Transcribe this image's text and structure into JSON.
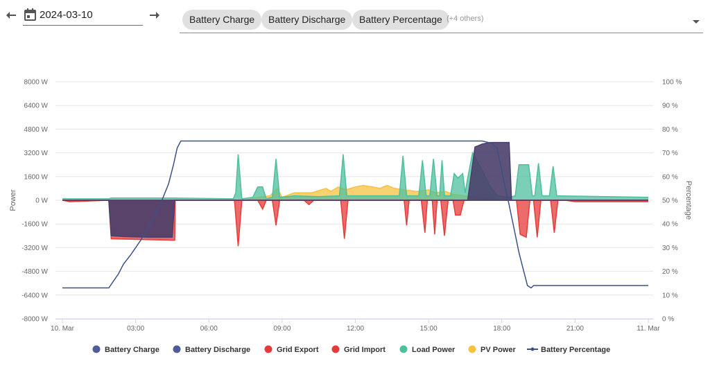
{
  "toolbar": {
    "date": "2024-03-10",
    "chips": [
      "Battery Charge",
      "Battery Discharge",
      "Battery Percentage"
    ],
    "others": "(+4 others)"
  },
  "chart_data": {
    "type": "area",
    "x_unit": "hours",
    "x_ticks": [
      "10. Mar",
      "03:00",
      "06:00",
      "09:00",
      "12:00",
      "15:00",
      "18:00",
      "21:00",
      "11. Mar"
    ],
    "xlim": [
      0,
      24
    ],
    "y_left": {
      "title": "Power",
      "ylim": [
        -8000,
        8000
      ],
      "ticks": [
        "8000 W",
        "6400 W",
        "4800 W",
        "3200 W",
        "1600 W",
        "0 W",
        "-1600 W",
        "-3200 W",
        "-4800 W",
        "-6400 W",
        "-8000 W"
      ]
    },
    "y_right": {
      "title": "Percentage",
      "ylim": [
        0,
        100
      ],
      "ticks": [
        "100 %",
        "90 %",
        "80 %",
        "70 %",
        "60 %",
        "50 %",
        "40 %",
        "30 %",
        "20 %",
        "10 %",
        "0 %"
      ]
    },
    "grid": true,
    "legend_position": "bottom",
    "series": [
      {
        "name": "Battery Charge",
        "color": "#4a3f6b",
        "axis": "left",
        "kind": "area",
        "points": [
          [
            0,
            0
          ],
          [
            16.6,
            0
          ],
          [
            16.75,
            1800
          ],
          [
            16.9,
            3600
          ],
          [
            17.2,
            3800
          ],
          [
            17.5,
            3900
          ],
          [
            18.3,
            3900
          ],
          [
            18.4,
            0
          ],
          [
            24,
            0
          ]
        ]
      },
      {
        "name": "Battery Discharge",
        "color": "#4a3f6b",
        "axis": "left",
        "kind": "area",
        "points": [
          [
            0,
            0
          ],
          [
            1.9,
            0
          ],
          [
            2.0,
            -2400
          ],
          [
            2.5,
            -2450
          ],
          [
            3.5,
            -2500
          ],
          [
            4.5,
            -2500
          ],
          [
            4.6,
            0
          ],
          [
            24,
            0
          ]
        ]
      },
      {
        "name": "Grid Export",
        "color": "#e63b3b",
        "axis": "left",
        "kind": "area",
        "points": [
          [
            0,
            0
          ],
          [
            0.3,
            -100
          ],
          [
            1.9,
            0
          ],
          [
            2.0,
            -2600
          ],
          [
            4.6,
            -2700
          ],
          [
            4.62,
            0
          ],
          [
            7.05,
            0
          ],
          [
            7.2,
            -3100
          ],
          [
            7.35,
            0
          ],
          [
            8.0,
            0
          ],
          [
            8.2,
            -600
          ],
          [
            8.35,
            0
          ],
          [
            8.6,
            0
          ],
          [
            8.75,
            -1700
          ],
          [
            8.9,
            0
          ],
          [
            9.9,
            0
          ],
          [
            10.1,
            -300
          ],
          [
            10.3,
            0
          ],
          [
            11.4,
            0
          ],
          [
            11.55,
            -2600
          ],
          [
            11.7,
            0
          ],
          [
            14.0,
            0
          ],
          [
            14.1,
            -1700
          ],
          [
            14.2,
            0
          ],
          [
            14.7,
            0
          ],
          [
            14.85,
            -2200
          ],
          [
            14.95,
            0
          ],
          [
            15.15,
            0
          ],
          [
            15.25,
            -2300
          ],
          [
            15.35,
            0
          ],
          [
            15.5,
            0
          ],
          [
            15.65,
            -2400
          ],
          [
            15.8,
            0
          ],
          [
            16.0,
            0
          ],
          [
            16.1,
            -1000
          ],
          [
            16.3,
            -1000
          ],
          [
            16.45,
            0
          ],
          [
            18.6,
            0
          ],
          [
            18.75,
            -2300
          ],
          [
            19.0,
            -2500
          ],
          [
            19.15,
            0
          ],
          [
            19.3,
            0
          ],
          [
            19.45,
            -2500
          ],
          [
            19.6,
            0
          ],
          [
            20.0,
            0
          ],
          [
            20.15,
            -2200
          ],
          [
            20.3,
            0
          ],
          [
            20.6,
            0
          ],
          [
            21.0,
            -100
          ],
          [
            24,
            -100
          ]
        ]
      },
      {
        "name": "Grid Import",
        "color": "#e63b3b",
        "axis": "left",
        "kind": "area",
        "points": [
          [
            0,
            0
          ],
          [
            24,
            0
          ]
        ]
      },
      {
        "name": "Load Power",
        "color": "#4dbf9e",
        "axis": "left",
        "kind": "area",
        "points": [
          [
            0,
            100
          ],
          [
            1.9,
            100
          ],
          [
            2.0,
            150
          ],
          [
            4.6,
            150
          ],
          [
            7.0,
            100
          ],
          [
            7.1,
            500
          ],
          [
            7.2,
            3100
          ],
          [
            7.35,
            100
          ],
          [
            7.8,
            200
          ],
          [
            8.0,
            900
          ],
          [
            8.2,
            900
          ],
          [
            8.35,
            100
          ],
          [
            8.6,
            200
          ],
          [
            8.75,
            2800
          ],
          [
            8.9,
            200
          ],
          [
            9.5,
            300
          ],
          [
            10.5,
            250
          ],
          [
            11.35,
            300
          ],
          [
            11.5,
            3100
          ],
          [
            11.65,
            300
          ],
          [
            13.8,
            300
          ],
          [
            13.95,
            3000
          ],
          [
            14.1,
            300
          ],
          [
            14.6,
            300
          ],
          [
            14.75,
            2700
          ],
          [
            14.9,
            300
          ],
          [
            15.05,
            300
          ],
          [
            15.2,
            2800
          ],
          [
            15.35,
            300
          ],
          [
            15.45,
            300
          ],
          [
            15.55,
            2700
          ],
          [
            15.65,
            300
          ],
          [
            15.9,
            300
          ],
          [
            16.05,
            1800
          ],
          [
            16.2,
            1500
          ],
          [
            16.4,
            1800
          ],
          [
            16.5,
            500
          ],
          [
            16.6,
            1500
          ],
          [
            16.8,
            3200
          ],
          [
            17.2,
            2000
          ],
          [
            17.5,
            1000
          ],
          [
            17.8,
            300
          ],
          [
            18.3,
            200
          ],
          [
            18.55,
            300
          ],
          [
            18.7,
            2400
          ],
          [
            19.1,
            2400
          ],
          [
            19.25,
            300
          ],
          [
            19.35,
            300
          ],
          [
            19.5,
            2500
          ],
          [
            19.65,
            300
          ],
          [
            19.95,
            300
          ],
          [
            20.1,
            2300
          ],
          [
            20.25,
            300
          ],
          [
            24,
            200
          ]
        ]
      },
      {
        "name": "PV Power",
        "color": "#f5c242",
        "axis": "left",
        "kind": "area",
        "points": [
          [
            0,
            0
          ],
          [
            7.5,
            0
          ],
          [
            8.0,
            200
          ],
          [
            8.5,
            300
          ],
          [
            8.8,
            800
          ],
          [
            9.0,
            200
          ],
          [
            9.5,
            500
          ],
          [
            10.2,
            500
          ],
          [
            10.8,
            800
          ],
          [
            11.0,
            600
          ],
          [
            11.3,
            900
          ],
          [
            11.6,
            700
          ],
          [
            12.0,
            900
          ],
          [
            12.3,
            1000
          ],
          [
            12.7,
            900
          ],
          [
            13.0,
            800
          ],
          [
            13.3,
            1000
          ],
          [
            13.6,
            800
          ],
          [
            14.0,
            700
          ],
          [
            14.5,
            600
          ],
          [
            15.0,
            700
          ],
          [
            15.3,
            500
          ],
          [
            15.7,
            600
          ],
          [
            16.0,
            400
          ],
          [
            16.5,
            300
          ],
          [
            17.0,
            200
          ],
          [
            17.5,
            100
          ],
          [
            18.0,
            0
          ],
          [
            24,
            0
          ]
        ]
      },
      {
        "name": "Battery Percentage",
        "color": "#3b5185",
        "axis": "right",
        "kind": "line",
        "points": [
          [
            0,
            13
          ],
          [
            1.9,
            13
          ],
          [
            2.1,
            16
          ],
          [
            2.3,
            19
          ],
          [
            2.5,
            23
          ],
          [
            2.8,
            27
          ],
          [
            3.2,
            33
          ],
          [
            3.6,
            40
          ],
          [
            4.0,
            48
          ],
          [
            4.35,
            57
          ],
          [
            4.55,
            65
          ],
          [
            4.7,
            72
          ],
          [
            4.85,
            75
          ],
          [
            5.0,
            75
          ],
          [
            17.2,
            75
          ],
          [
            17.6,
            74
          ],
          [
            17.8,
            72
          ],
          [
            17.95,
            65
          ],
          [
            18.1,
            57
          ],
          [
            18.3,
            48
          ],
          [
            18.5,
            38
          ],
          [
            18.7,
            28
          ],
          [
            18.9,
            20
          ],
          [
            19.05,
            14
          ],
          [
            19.2,
            13
          ],
          [
            19.3,
            14
          ],
          [
            24,
            14
          ]
        ]
      }
    ]
  }
}
